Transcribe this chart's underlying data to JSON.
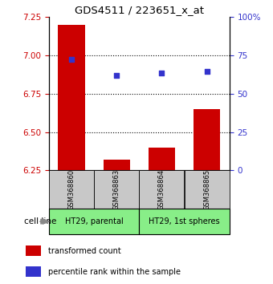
{
  "title": "GDS4511 / 223651_x_at",
  "samples": [
    "GSM368860",
    "GSM368863",
    "GSM368864",
    "GSM368865"
  ],
  "bar_values": [
    7.2,
    6.32,
    6.4,
    6.65
  ],
  "bar_base": 6.25,
  "blue_values": [
    6.972,
    6.868,
    6.885,
    6.895
  ],
  "left_ylim": [
    6.25,
    7.25
  ],
  "right_ylim": [
    0,
    100
  ],
  "left_yticks": [
    6.25,
    6.5,
    6.75,
    7.0,
    7.25
  ],
  "right_yticks": [
    0,
    25,
    50,
    75,
    100
  ],
  "right_yticklabels": [
    "0",
    "25",
    "50",
    "75",
    "100%"
  ],
  "hgrid_values": [
    7.0,
    6.75,
    6.5
  ],
  "bar_color": "#cc0000",
  "blue_color": "#3333cc",
  "cell_line_groups": [
    {
      "label": "HT29, parental",
      "indices": [
        0,
        1
      ],
      "color": "#88ee88"
    },
    {
      "label": "HT29, 1st spheres",
      "indices": [
        2,
        3
      ],
      "color": "#88ee88"
    }
  ],
  "cell_line_label": "cell line",
  "legend_items": [
    {
      "label": "transformed count",
      "color": "#cc0000"
    },
    {
      "label": "percentile rank within the sample",
      "color": "#3333cc"
    }
  ],
  "sample_box_color": "#c8c8c8",
  "left_tick_color": "#cc0000",
  "right_tick_color": "#3333cc",
  "bar_width": 0.6
}
